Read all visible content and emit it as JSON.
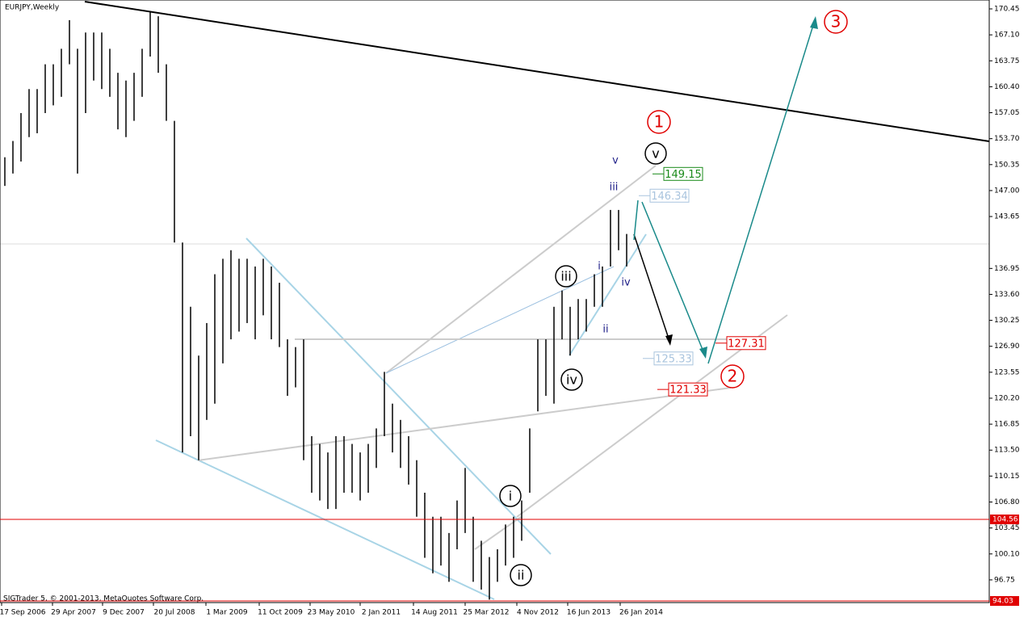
{
  "chart_data": {
    "type": "ohlc",
    "title": "EURJPY,Weekly",
    "footer": "SIGTrader 5, © 2001-2013, MetaQuotes Software Corp.",
    "color": "#000000",
    "x_labels": [
      "17 Sep 2006",
      "29 Apr 2007",
      "9 Dec 2007",
      "20 Jul 2008",
      "1 Mar 2009",
      "11 Oct 2009",
      "23 May 2010",
      "2 Jan 2011",
      "14 Aug 2011",
      "25 Mar 2012",
      "4 Nov 2012",
      "16 Jun 2013",
      "26 Jan 2014"
    ],
    "high": [
      151.3,
      153.4,
      157.0,
      160.1,
      160.1,
      163.3,
      163.3,
      165.3,
      169.0,
      165.3,
      167.4,
      167.4,
      167.4,
      165.3,
      162.2,
      161.2,
      162.2,
      165.3,
      170.0,
      169.5,
      163.3,
      156.0,
      140.3,
      132.0,
      125.7,
      129.9,
      136.2,
      138.2,
      139.3,
      138.2,
      138.2,
      137.2,
      138.2,
      137.2,
      135.1,
      127.8,
      126.8,
      127.8,
      115.3,
      114.3,
      113.2,
      115.3,
      115.3,
      114.3,
      113.2,
      114.3,
      116.3,
      123.6,
      119.5,
      117.4,
      115.3,
      112.2,
      108.0,
      104.9,
      104.9,
      102.8,
      107.0,
      111.2,
      104.9,
      101.8,
      99.7,
      100.7,
      103.9,
      104.9,
      107.0,
      116.3,
      127.8,
      127.8,
      132.0,
      134.1,
      132.0,
      133.0,
      133.0,
      136.2,
      137.2,
      144.5,
      144.5,
      141.4
    ],
    "low": [
      147.6,
      149.2,
      150.75,
      153.9,
      154.4,
      157.0,
      158.0,
      159.1,
      163.3,
      149.2,
      157.0,
      161.2,
      160.1,
      159.1,
      154.9,
      153.9,
      156.0,
      159.1,
      164.3,
      162.2,
      156.0,
      140.3,
      113.2,
      115.3,
      112.2,
      117.4,
      119.5,
      124.7,
      127.8,
      128.8,
      129.9,
      127.8,
      130.9,
      127.8,
      126.8,
      120.5,
      121.6,
      112.2,
      108.0,
      107.0,
      105.9,
      105.9,
      108.0,
      108.0,
      107.0,
      108.0,
      111.2,
      115.3,
      113.2,
      111.2,
      109.05,
      104.9,
      99.6,
      97.6,
      98.6,
      96.5,
      100.7,
      102.8,
      96.5,
      95.5,
      94.2,
      96.5,
      98.6,
      99.6,
      101.8,
      108.0,
      118.5,
      120.5,
      119.5,
      127.8,
      125.7,
      127.8,
      128.8,
      132.0,
      132.0,
      137.2,
      139.3,
      137.2
    ],
    "ylim": [
      94.03,
      170.45
    ],
    "yticks": [
      170.45,
      {
        "value": 167.1,
        "label": "167.10"
      },
      163.75,
      {
        "value": 160.4,
        "label": "160.40"
      },
      157.05,
      {
        "value": 153.7,
        "label": "153.70"
      },
      150.35,
      {
        "value": 147,
        "label": "147.00"
      },
      143.65,
      136.95,
      {
        "value": 133.6,
        "label": "133.60"
      },
      130.25,
      {
        "value": 126.9,
        "label": "126.90"
      },
      123.55,
      {
        "value": 120.2,
        "label": "120.20"
      },
      116.85,
      {
        "value": 113.5,
        "label": "113.50"
      },
      110.15,
      {
        "value": 106.8,
        "label": "106.80"
      },
      103.45,
      {
        "value": 100.1,
        "label": "100.10"
      },
      96.75
    ],
    "price_levels": [
      104.56,
      94.03
    ],
    "price_labels": [
      {
        "value": 149.15,
        "color": "#1a8a1a"
      },
      {
        "value": 146.34,
        "color": "#a9c4de"
      },
      {
        "value": 127.31,
        "color": "#e00000"
      },
      {
        "value": 125.33,
        "color": "#a9c4de"
      },
      {
        "value": 121.33,
        "color": "#e00000"
      }
    ],
    "wave_labels": [
      "v",
      "iii",
      "i",
      "ii",
      "iv"
    ],
    "circled_labels": [
      "v",
      "iii",
      "iv",
      "i",
      "ii"
    ],
    "major_labels": [
      "1",
      "2",
      "3"
    ]
  }
}
